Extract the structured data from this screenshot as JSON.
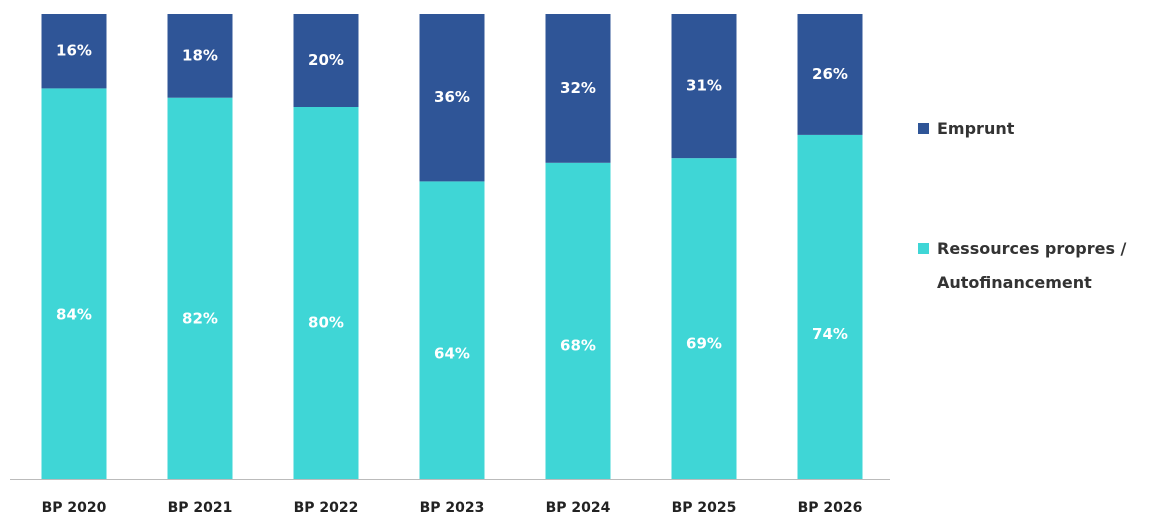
{
  "chart_data": {
    "type": "stacked-bar",
    "categories": [
      "BP 2020",
      "BP 2021",
      "BP 2022",
      "BP 2023",
      "BP 2024",
      "BP 2025",
      "BP 2026"
    ],
    "series": [
      {
        "name": "Ressources propres / Autofinancement",
        "color": "#3fd6d6",
        "values": [
          84,
          82,
          80,
          64,
          68,
          69,
          74
        ],
        "value_labels": [
          "84%",
          "82%",
          "80%",
          "64%",
          "68%",
          "69%",
          "74%"
        ]
      },
      {
        "name": "Emprunt",
        "color": "#2f5597",
        "values": [
          16,
          18,
          20,
          36,
          32,
          31,
          26
        ],
        "value_labels": [
          "16%",
          "18%",
          "20%",
          "36%",
          "32%",
          "31%",
          "26%"
        ]
      }
    ],
    "ylim": [
      0,
      100
    ]
  }
}
